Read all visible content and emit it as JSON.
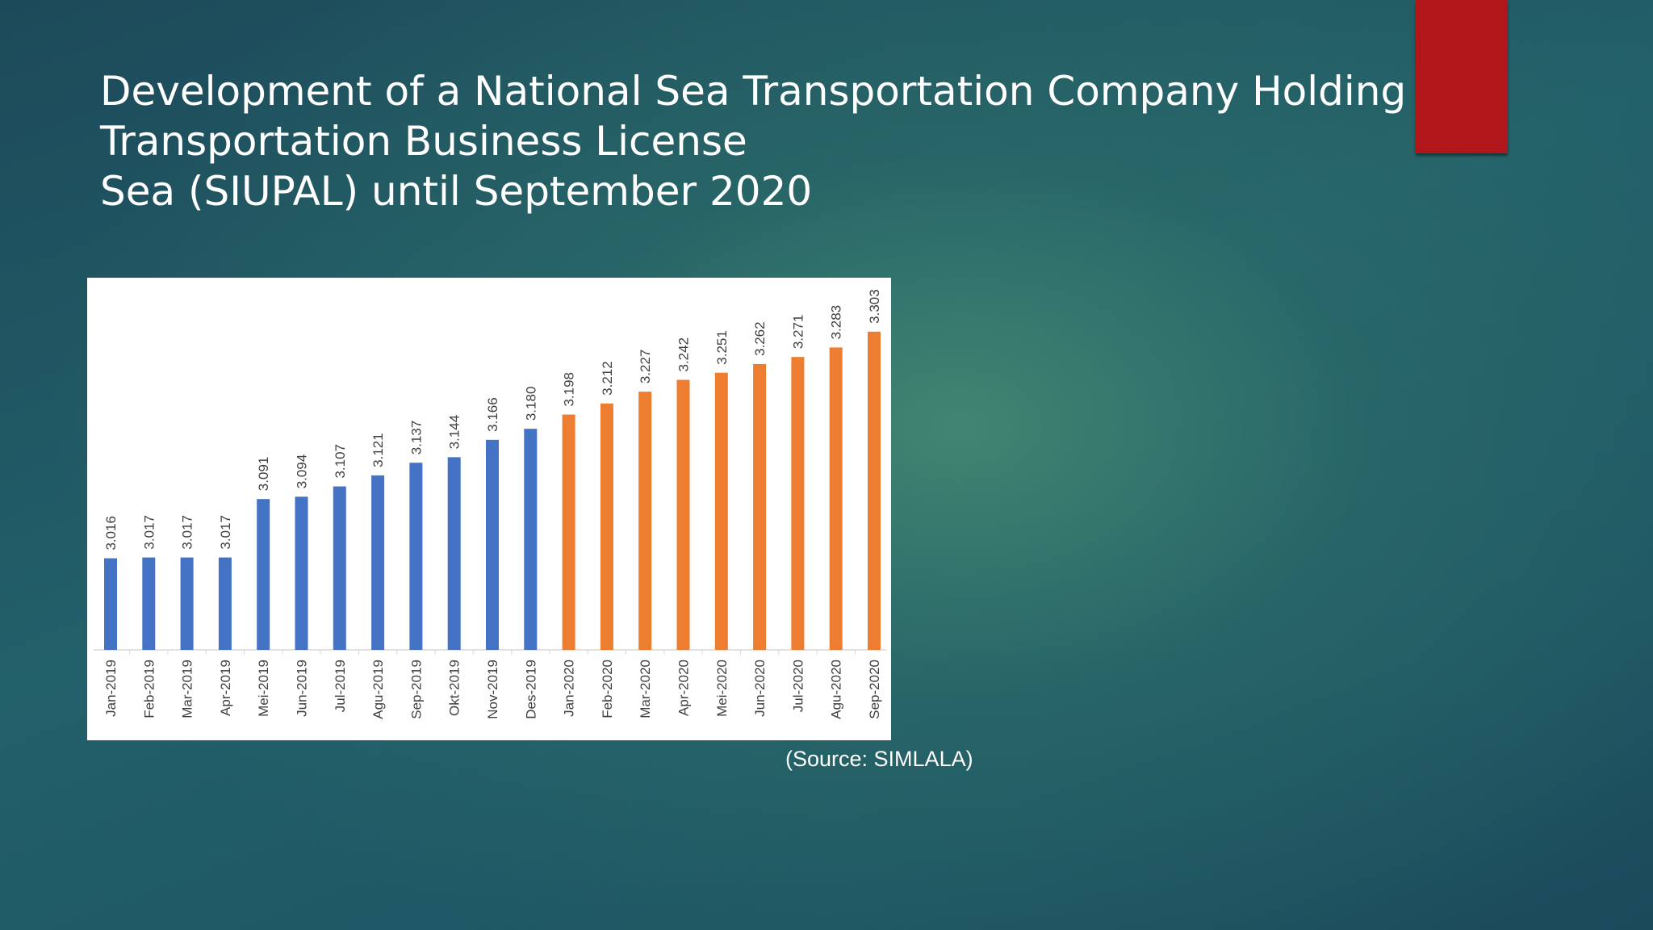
{
  "slide": {
    "title_lines": [
      "Development of a National Sea Transportation Company Holding a",
      "Transportation Business License",
      "Sea (SIUPAL) until September 2020"
    ],
    "source": "(Source: SIMLALA)"
  },
  "colors": {
    "bar_2019": "#4472c4",
    "bar_2020": "#ed7d31",
    "accent_red": "#b1161a"
  },
  "chart_data": {
    "type": "bar",
    "title": "",
    "xlabel": "",
    "ylabel": "",
    "ylim": [
      2900,
      3310
    ],
    "grid": false,
    "categories": [
      "Jan-2019",
      "Feb-2019",
      "Mar-2019",
      "Apr-2019",
      "Mei-2019",
      "Jun-2019",
      "Jul-2019",
      "Agu-2019",
      "Sep-2019",
      "Okt-2019",
      "Nov-2019",
      "Des-2019",
      "Jan-2020",
      "Feb-2020",
      "Mar-2020",
      "Apr-2020",
      "Mei-2020",
      "Jun-2020",
      "Jul-2020",
      "Agu-2020",
      "Sep-2020"
    ],
    "values": [
      3016,
      3017,
      3017,
      3017,
      3091,
      3094,
      3107,
      3121,
      3137,
      3144,
      3166,
      3180,
      3198,
      3212,
      3227,
      3242,
      3251,
      3262,
      3271,
      3283,
      3303
    ],
    "labels": [
      "3.016",
      "3.017",
      "3.017",
      "3.017",
      "3.091",
      "3.094",
      "3.107",
      "3.121",
      "3.137",
      "3.144",
      "3.166",
      "3.180",
      "3.198",
      "3.212",
      "3.227",
      "3.242",
      "3.251",
      "3.262",
      "3.271",
      "3.283",
      "3.303"
    ],
    "series_groups": [
      "2019",
      "2019",
      "2019",
      "2019",
      "2019",
      "2019",
      "2019",
      "2019",
      "2019",
      "2019",
      "2019",
      "2019",
      "2020",
      "2020",
      "2020",
      "2020",
      "2020",
      "2020",
      "2020",
      "2020",
      "2020"
    ]
  }
}
